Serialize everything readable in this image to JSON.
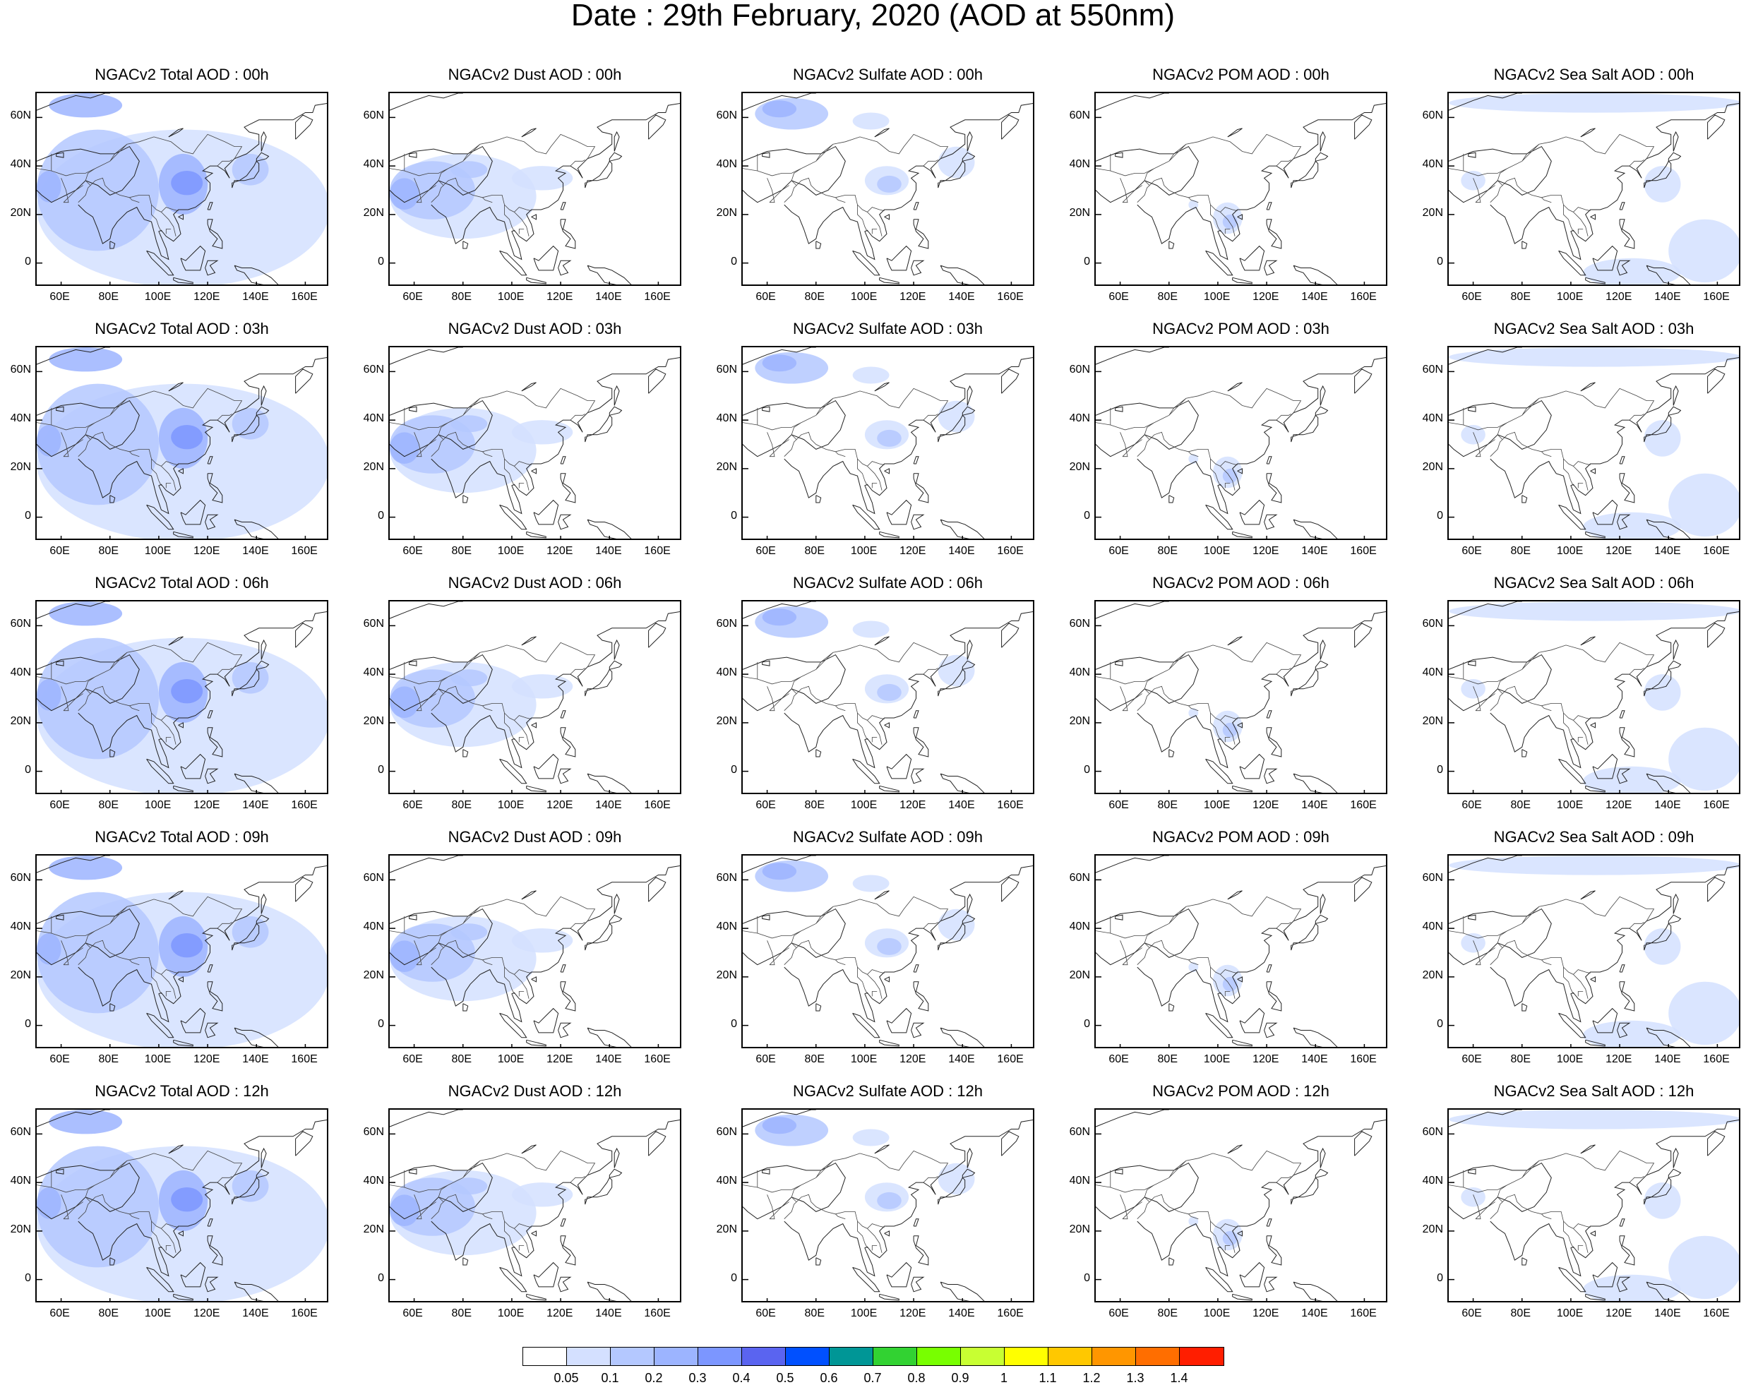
{
  "title": "Date : 29th February, 2020 (AOD at 550nm)",
  "axes": {
    "lon_ticks": [
      "60E",
      "80E",
      "100E",
      "120E",
      "140E",
      "160E"
    ],
    "lat_ticks": [
      "60N",
      "40N",
      "20N",
      "0"
    ],
    "lon_range": [
      50,
      170
    ],
    "lat_range": [
      -10,
      70
    ]
  },
  "species": [
    "Total",
    "Dust",
    "Sulfate",
    "POM",
    "Sea Salt"
  ],
  "hours": [
    "00h",
    "03h",
    "06h",
    "09h",
    "12h"
  ],
  "panels": [
    [
      {
        "title": "NGACv2 Total AOD : 00h",
        "species": "Total"
      },
      {
        "title": "NGACv2 Dust AOD : 00h",
        "species": "Dust"
      },
      {
        "title": "NGACv2 Sulfate AOD : 00h",
        "species": "Sulfate"
      },
      {
        "title": "NGACv2 POM AOD : 00h",
        "species": "POM"
      },
      {
        "title": "NGACv2 Sea Salt AOD : 00h",
        "species": "Sea Salt"
      }
    ],
    [
      {
        "title": "NGACv2 Total AOD : 03h",
        "species": "Total"
      },
      {
        "title": "NGACv2 Dust AOD : 03h",
        "species": "Dust"
      },
      {
        "title": "NGACv2 Sulfate AOD : 03h",
        "species": "Sulfate"
      },
      {
        "title": "NGACv2 POM AOD : 03h",
        "species": "POM"
      },
      {
        "title": "NGACv2 Sea Salt AOD : 03h",
        "species": "Sea Salt"
      }
    ],
    [
      {
        "title": "NGACv2 Total AOD : 06h",
        "species": "Total"
      },
      {
        "title": "NGACv2 Dust AOD : 06h",
        "species": "Dust"
      },
      {
        "title": "NGACv2 Sulfate AOD : 06h",
        "species": "Sulfate"
      },
      {
        "title": "NGACv2 POM AOD : 06h",
        "species": "POM"
      },
      {
        "title": "NGACv2 Sea Salt AOD : 06h",
        "species": "Sea Salt"
      }
    ],
    [
      {
        "title": "NGACv2 Total AOD : 09h",
        "species": "Total"
      },
      {
        "title": "NGACv2 Dust AOD : 09h",
        "species": "Dust"
      },
      {
        "title": "NGACv2 Sulfate AOD : 09h",
        "species": "Sulfate"
      },
      {
        "title": "NGACv2 POM AOD : 09h",
        "species": "POM"
      },
      {
        "title": "NGACv2 Sea Salt  AOD : 09h",
        "species": "Sea Salt"
      }
    ],
    [
      {
        "title": "NGACv2 Total AOD  : 12h",
        "species": "Total"
      },
      {
        "title": "NGACv2 Dust AOD : 12h",
        "species": "Dust"
      },
      {
        "title": "NGACv2 Sulfate AOD : 12h",
        "species": "Sulfate"
      },
      {
        "title": "NGACv2 POM  AOD : 12h",
        "species": "POM"
      },
      {
        "title": "NGACv2 Sea Salt  AOD : 12h",
        "species": "Sea Salt"
      }
    ]
  ],
  "colorbar": {
    "labels": [
      "0.05",
      "0.1",
      "0.2",
      "0.3",
      "0.4",
      "0.5",
      "0.6",
      "0.7",
      "0.8",
      "0.9",
      "1",
      "1.1",
      "1.2",
      "1.3",
      "1.4"
    ],
    "colors": [
      "#ffffff",
      "#d4e0ff",
      "#b4c8ff",
      "#9cb4ff",
      "#7c96ff",
      "#5a64f0",
      "#0050ff",
      "#009696",
      "#32d232",
      "#78ff00",
      "#c8ff32",
      "#ffff00",
      "#ffc800",
      "#ff9600",
      "#ff6e00",
      "#ff1e00"
    ]
  }
}
